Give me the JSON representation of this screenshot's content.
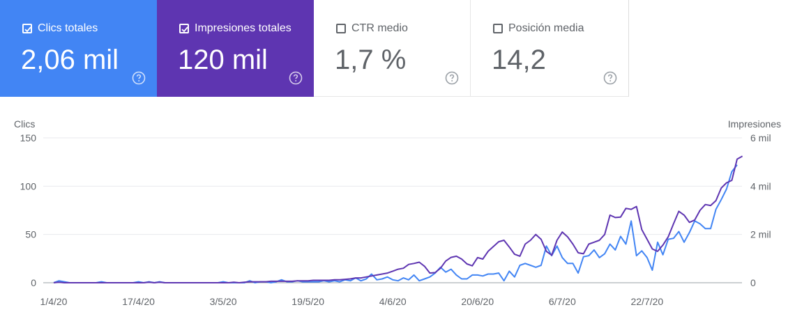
{
  "metrics": {
    "clicks": {
      "label": "Clics totales",
      "value": "2,06 mil",
      "checked": true,
      "color": "#4285f4"
    },
    "impressions": {
      "label": "Impresiones totales",
      "value": "120 mil",
      "checked": true,
      "color": "#5e35b1"
    },
    "ctr": {
      "label": "CTR medio",
      "value": "1,7 %",
      "checked": false
    },
    "position": {
      "label": "Posición media",
      "value": "14,2",
      "checked": false
    }
  },
  "help_icon": "help-circle-icon",
  "chart_data": {
    "type": "line",
    "ylabel_left": "Clics",
    "ylabel_right": "Impresiones",
    "y_left_ticks": [
      "150",
      "100",
      "50",
      "0"
    ],
    "y_left_range": [
      0,
      150
    ],
    "y_right_ticks": [
      "6 mil",
      "4 mil",
      "2 mil",
      "0"
    ],
    "y_right_range": [
      0,
      6000
    ],
    "x_tick_labels": [
      "1/4/20",
      "17/4/20",
      "3/5/20",
      "19/5/20",
      "4/6/20",
      "20/6/20",
      "6/7/20",
      "22/7/20"
    ],
    "x_tick_indices": [
      0,
      16,
      32,
      48,
      64,
      80,
      96,
      112
    ],
    "grid": true,
    "series": [
      {
        "name": "Clics",
        "axis": "left",
        "color": "#4285f4",
        "values": [
          0,
          2,
          1,
          0,
          0,
          0,
          0,
          0,
          0,
          1,
          0,
          0,
          0,
          0,
          0,
          0,
          1,
          0,
          1,
          0,
          1,
          0,
          0,
          0,
          0,
          0,
          0,
          0,
          0,
          0,
          0,
          0,
          1,
          0,
          0,
          0,
          0,
          2,
          0,
          1,
          1,
          0,
          1,
          3,
          1,
          1,
          2,
          1,
          1,
          1,
          1,
          2,
          1,
          2,
          1,
          3,
          2,
          5,
          2,
          4,
          9,
          3,
          4,
          6,
          3,
          2,
          5,
          3,
          8,
          2,
          4,
          6,
          10,
          16,
          11,
          14,
          8,
          4,
          4,
          8,
          8,
          7,
          9,
          9,
          10,
          2,
          12,
          6,
          18,
          20,
          18,
          16,
          18,
          38,
          28,
          38,
          26,
          20,
          20,
          10,
          27,
          28,
          34,
          26,
          30,
          40,
          34,
          48,
          40,
          64,
          28,
          33,
          26,
          13,
          42,
          29,
          45,
          46,
          53,
          42,
          52,
          64,
          61,
          56,
          56,
          76,
          86,
          97,
          115,
          122
        ]
      },
      {
        "name": "Impresiones",
        "axis": "right",
        "color": "#5e35b1",
        "values": [
          0,
          20,
          0,
          0,
          0,
          0,
          0,
          0,
          0,
          0,
          0,
          0,
          0,
          0,
          0,
          0,
          0,
          0,
          20,
          0,
          20,
          0,
          0,
          0,
          0,
          0,
          0,
          0,
          0,
          0,
          0,
          0,
          0,
          0,
          20,
          0,
          20,
          40,
          40,
          40,
          40,
          60,
          60,
          60,
          60,
          60,
          80,
          80,
          80,
          100,
          100,
          100,
          100,
          120,
          120,
          140,
          160,
          200,
          200,
          240,
          280,
          320,
          360,
          400,
          480,
          560,
          600,
          760,
          800,
          850,
          680,
          400,
          420,
          600,
          900,
          1050,
          1100,
          980,
          780,
          700,
          1040,
          980,
          1300,
          1500,
          1700,
          1760,
          1480,
          1180,
          1100,
          1600,
          1760,
          2000,
          1800,
          1300,
          1140,
          1760,
          2100,
          1900,
          1600,
          1240,
          1200,
          1600,
          1680,
          1760,
          2000,
          2800,
          2700,
          2720,
          3080,
          3040,
          3160,
          2200,
          1800,
          1400,
          1300,
          1560,
          1900,
          2440,
          2960,
          2800,
          2500,
          2600,
          3000,
          3240,
          3200,
          3400,
          3920,
          4140,
          4240,
          5120,
          5240
        ]
      }
    ]
  }
}
